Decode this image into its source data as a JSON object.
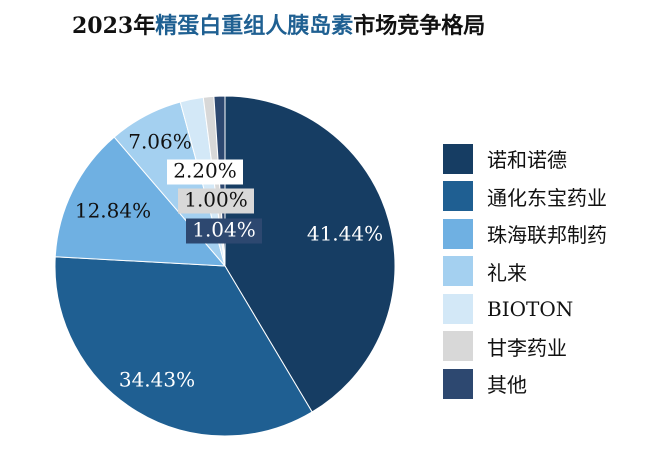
{
  "title": {
    "prefix": "2023年",
    "highlight": "精蛋白重组人胰岛素",
    "suffix": "市场竞争格局"
  },
  "chart_data": {
    "type": "pie",
    "title": "2023年精蛋白重组人胰岛素市场竞争格局",
    "slices": [
      {
        "name": "诺和诺德",
        "value": 41.44,
        "label": "41.44%",
        "color": "#163d63"
      },
      {
        "name": "通化东宝药业",
        "value": 34.43,
        "label": "34.43%",
        "color": "#1f5f92"
      },
      {
        "name": "珠海联邦制药",
        "value": 12.84,
        "label": "12.84%",
        "color": "#6fb0e2"
      },
      {
        "name": "礼来",
        "value": 7.06,
        "label": "7.06%",
        "color": "#a4d0f0"
      },
      {
        "name": "BIOTON",
        "value": 2.2,
        "label": "2.20%",
        "color": "#d3e8f7"
      },
      {
        "name": "甘李药业",
        "value": 1.0,
        "label": "1.00%",
        "color": "#d8d8d8"
      },
      {
        "name": "其他",
        "value": 1.04,
        "label": "1.04%",
        "color": "#2d4870"
      }
    ],
    "legend_position": "right"
  }
}
